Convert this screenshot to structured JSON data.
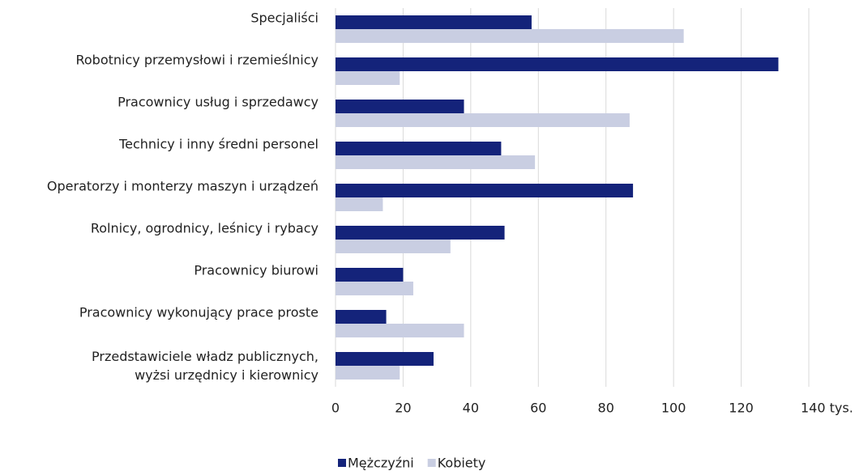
{
  "chart_data": {
    "type": "bar",
    "orientation": "horizontal",
    "categories": [
      "Specjaliści",
      "Robotnicy przemysłowi i rzemieślnicy",
      "Pracownicy usług i sprzedawcy",
      "Technicy i inny średni personel",
      "Operatorzy i monterzy maszyn i urządzeń",
      "Rolnicy, ogrodnicy, leśnicy i rybacy",
      "Pracownicy biurowi",
      "Pracownicy wykonujący prace proste",
      [
        "Przedstawiciele władz publicznych,",
        "wyżsi urzędnicy i kierownicy"
      ]
    ],
    "series": [
      {
        "name": "Mężczyźni",
        "color": "#14237a",
        "values": [
          58,
          131,
          38,
          49,
          88,
          50,
          20,
          15,
          29
        ]
      },
      {
        "name": "Kobiety",
        "color": "#c9cee2",
        "values": [
          103,
          19,
          87,
          59,
          14,
          34,
          23,
          38,
          19
        ]
      }
    ],
    "xlim": [
      0,
      140
    ],
    "xticks": [
      0,
      20,
      40,
      60,
      80,
      100,
      120,
      {
        "value": 140,
        "label": "140 tys."
      }
    ],
    "grid": true,
    "legend": "bottom"
  }
}
